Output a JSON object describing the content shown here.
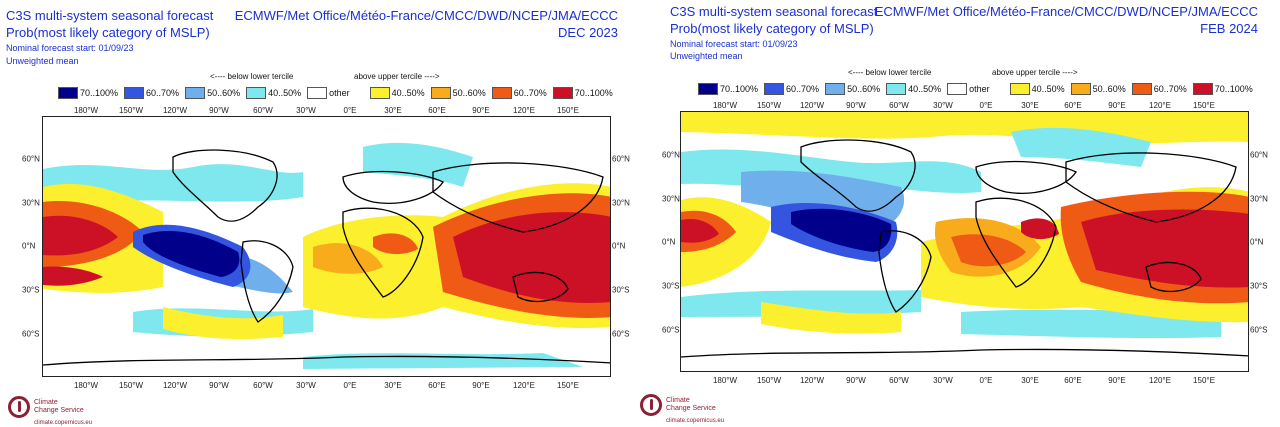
{
  "legend_colors": {
    "below_70_100": "#00008b",
    "below_60_70": "#3355e0",
    "below_50_60": "#6fb0ec",
    "below_40_50": "#7ee8ee",
    "other": "#ffffff",
    "above_40_50": "#fbef2e",
    "above_50_60": "#f8ac1c",
    "above_60_70": "#ef5a14",
    "above_70_100": "#cc1127"
  },
  "panels": [
    {
      "title_line1": "C3S multi-system seasonal forecast",
      "title_line2": "Prob(most likely category of MSLP)",
      "forecast_start": "Nominal forecast start: 01/09/23",
      "mean_type": "Unweighted mean",
      "centres": "ECMWF/Met Office/Météo-France/CMCC/DWD/NCEP/JMA/ECCC",
      "valid_period": "DEC 2023",
      "below_caption": "<---- below lower tercile",
      "above_caption": "above upper tercile ---->",
      "legend": [
        "70..100%",
        "60..70%",
        "50..60%",
        "40..50%",
        "other",
        "40..50%",
        "50..60%",
        "60..70%",
        "70..100%"
      ],
      "lon_labels": [
        "180°W",
        "150°W",
        "120°W",
        "90°W",
        "60°W",
        "30°W",
        "0°E",
        "30°E",
        "60°E",
        "90°E",
        "120°E",
        "150°E"
      ],
      "lat_labels": [
        "60°N",
        "30°N",
        "0°N",
        "30°S",
        "60°S"
      ],
      "logo_line1": "Climate",
      "logo_line2": "Change Service",
      "logo_url": "climate.copernicus.eu"
    },
    {
      "title_line1": "C3S multi-system seasonal forecast",
      "title_line2": "Prob(most likely category of MSLP)",
      "forecast_start": "Nominal forecast start: 01/09/23",
      "mean_type": "Unweighted mean",
      "centres": "ECMWF/Met Office/Météo-France/CMCC/DWD/NCEP/JMA/ECCC",
      "valid_period": "FEB 2024",
      "below_caption": "<---- below lower tercile",
      "above_caption": "above upper tercile ---->",
      "legend": [
        "70..100%",
        "60..70%",
        "50..60%",
        "40..50%",
        "other",
        "40..50%",
        "50..60%",
        "60..70%",
        "70..100%"
      ],
      "lon_labels": [
        "180°W",
        "150°W",
        "120°W",
        "90°W",
        "60°W",
        "30°W",
        "0°E",
        "30°E",
        "60°E",
        "90°E",
        "120°E",
        "150°E"
      ],
      "lat_labels": [
        "60°N",
        "30°N",
        "0°N",
        "30°S",
        "60°S"
      ],
      "logo_line1": "Climate",
      "logo_line2": "Change Service",
      "logo_url": "climate.copernicus.eu"
    }
  ]
}
